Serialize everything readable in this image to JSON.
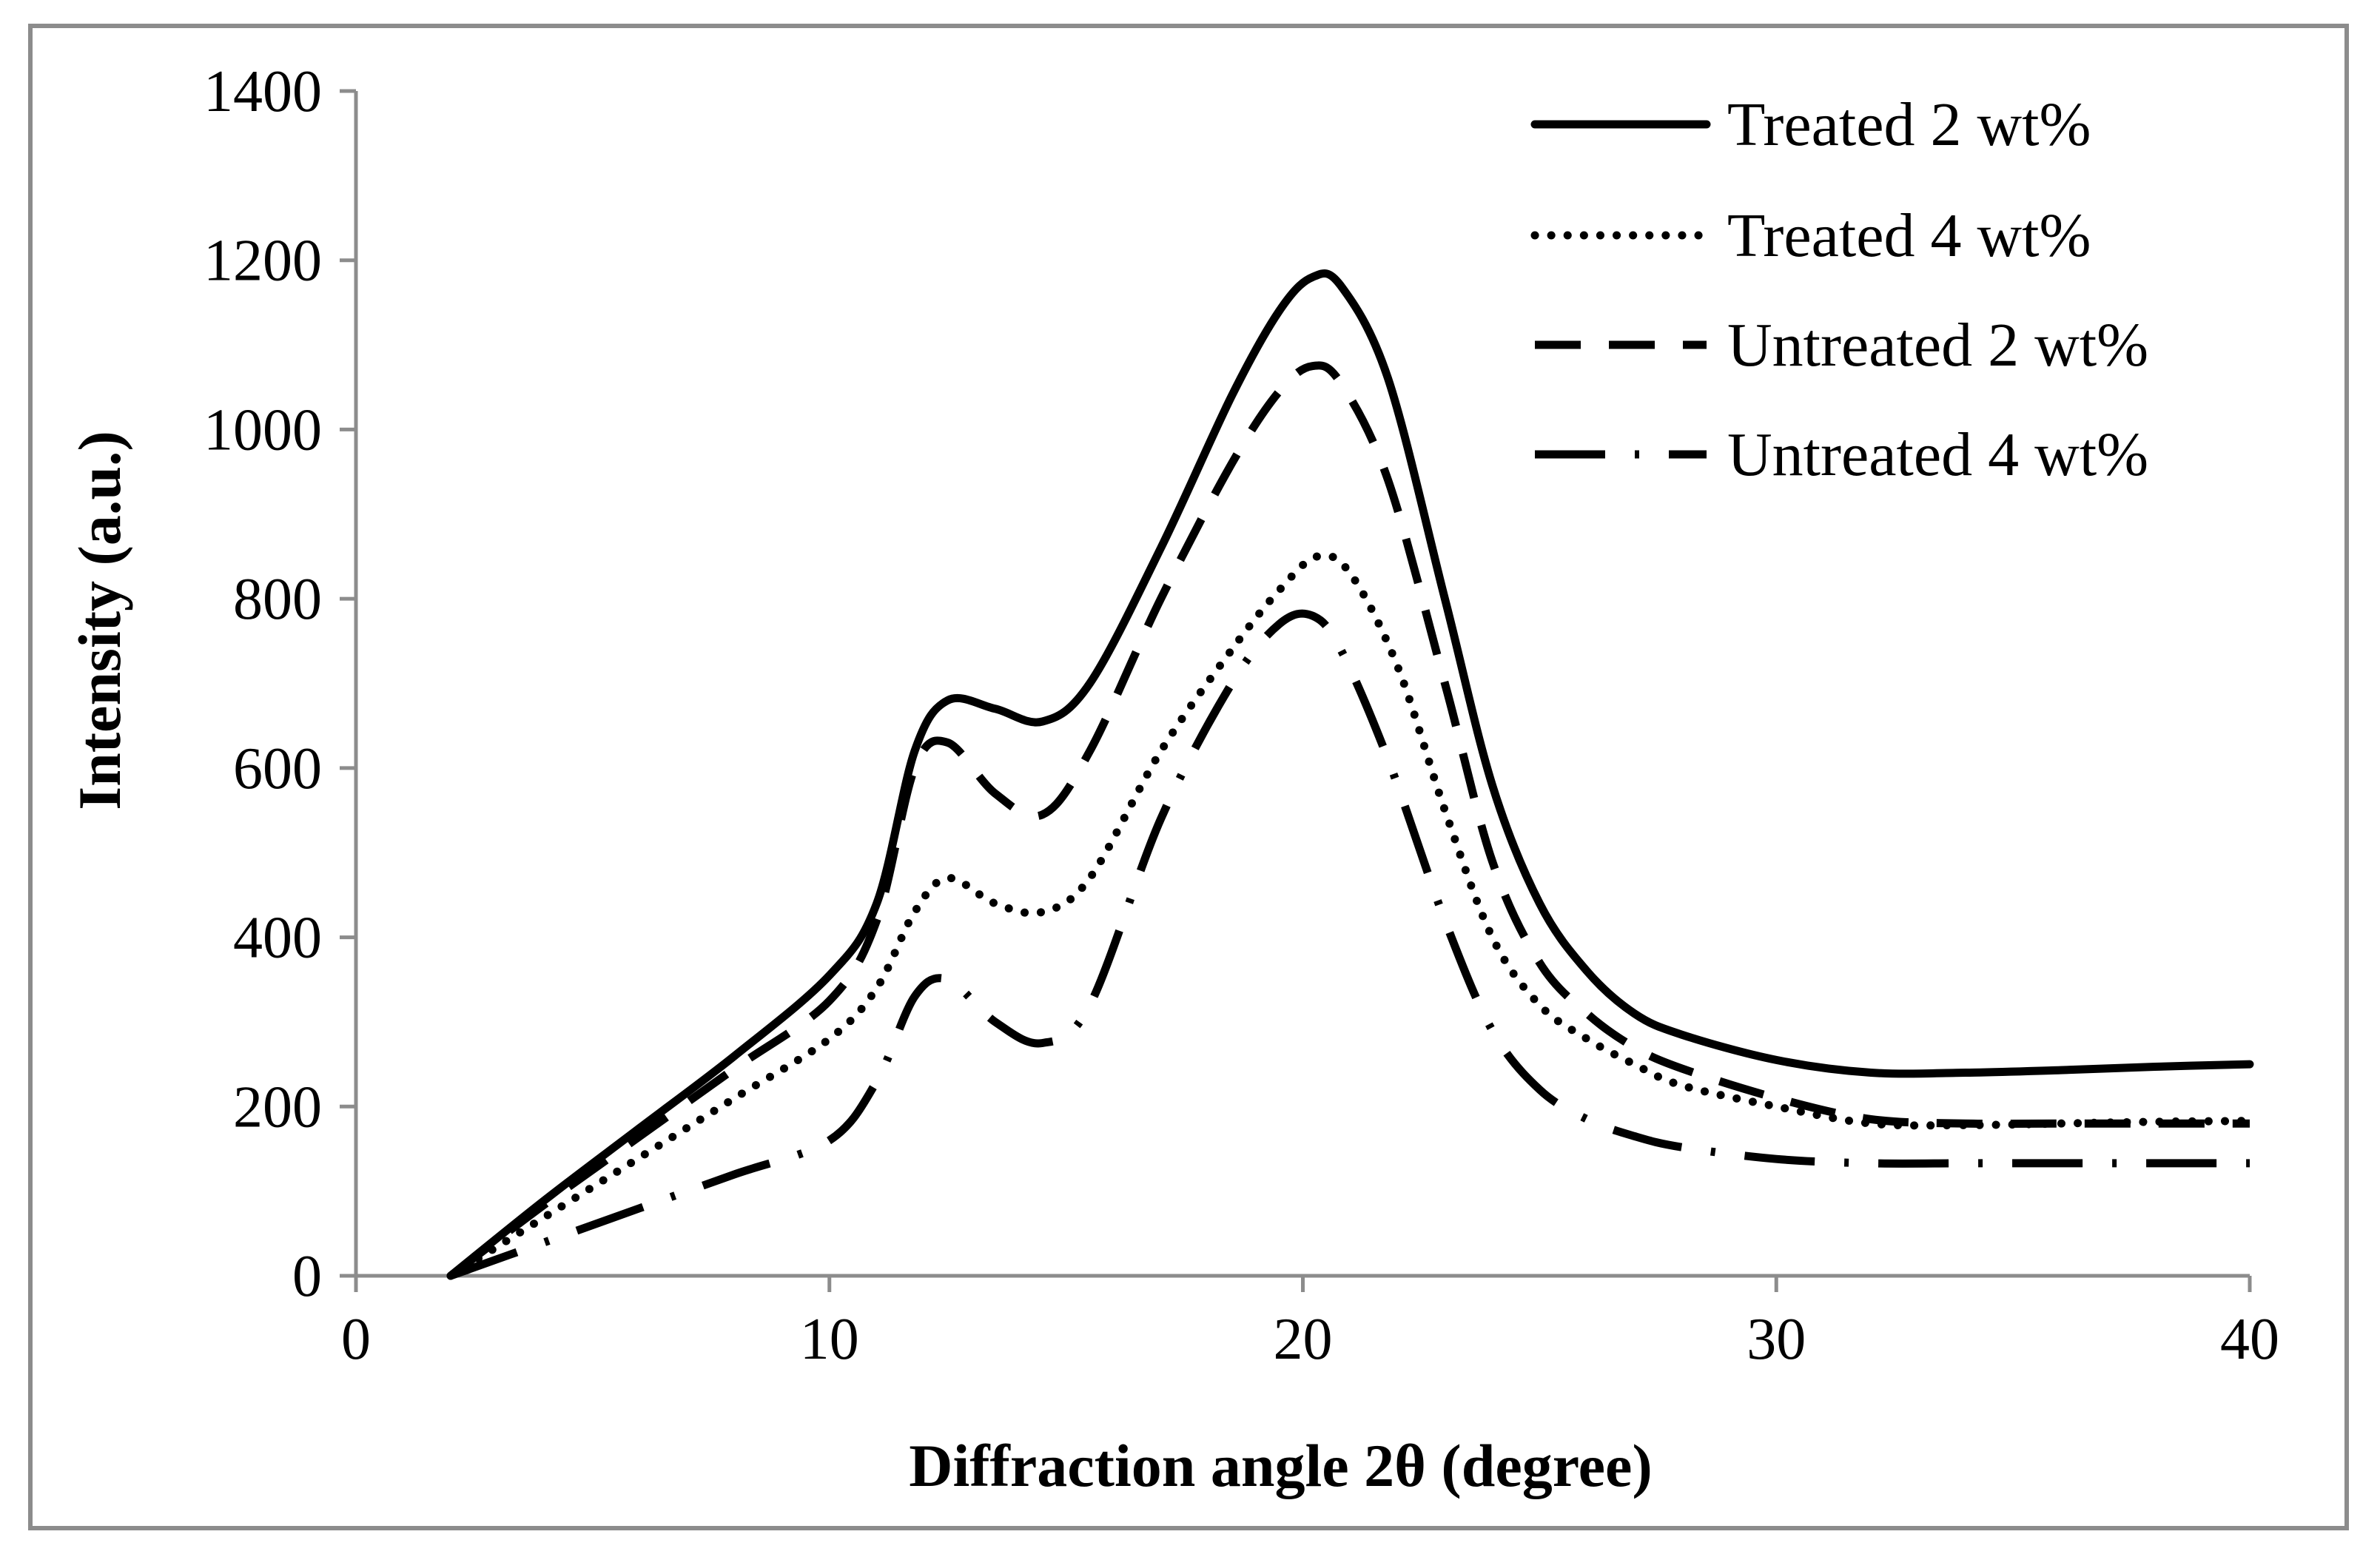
{
  "chart_data": {
    "type": "line",
    "title": "",
    "xlabel": "Diffraction angle 2θ (degree)",
    "ylabel": "Intensity (a.u.)",
    "xlim": [
      0,
      40
    ],
    "ylim": [
      0,
      1400
    ],
    "xticks": [
      0,
      10,
      20,
      30,
      40
    ],
    "yticks": [
      0,
      200,
      400,
      600,
      800,
      1000,
      1200,
      1400
    ],
    "x_tick_labels": [
      "0",
      "10",
      "20",
      "30",
      "40"
    ],
    "y_tick_labels": [
      "0",
      "200",
      "400",
      "600",
      "800",
      "1000",
      "1200",
      "1400"
    ],
    "grid": false,
    "legend_position": "top-right",
    "series": [
      {
        "name": "Treated 2 wt%",
        "style": "solid",
        "color": "#000000",
        "x": [
          2,
          4,
          6,
          8,
          10,
          11,
          11.8,
          12.5,
          13.5,
          14.5,
          15.5,
          17,
          18.5,
          19.5,
          20.2,
          20.8,
          21.8,
          23,
          24,
          25,
          26,
          27,
          28,
          30,
          32,
          34,
          36,
          38,
          40
        ],
        "y": [
          0,
          90,
          175,
          260,
          355,
          440,
          620,
          680,
          670,
          655,
          700,
          860,
          1040,
          1140,
          1180,
          1170,
          1060,
          800,
          580,
          440,
          360,
          310,
          285,
          255,
          240,
          240,
          243,
          247,
          250
        ]
      },
      {
        "name": "Treated 4 wt%",
        "style": "dotted",
        "color": "#000000",
        "x": [
          2,
          4,
          6,
          8,
          10,
          11,
          11.8,
          12.5,
          13.5,
          14.5,
          15.5,
          17,
          18.5,
          19.5,
          20.3,
          21,
          22,
          23,
          24,
          25,
          26,
          27,
          28,
          30,
          32,
          34,
          36,
          38,
          40
        ],
        "y": [
          0,
          70,
          140,
          210,
          280,
          340,
          430,
          470,
          440,
          430,
          470,
          620,
          740,
          810,
          850,
          830,
          720,
          550,
          400,
          320,
          280,
          250,
          225,
          200,
          180,
          178,
          180,
          182,
          183
        ]
      },
      {
        "name": "Untreated 2 wt%",
        "style": "dashed",
        "color": "#000000",
        "x": [
          2,
          4,
          6,
          8,
          10,
          11,
          11.8,
          12.5,
          13.5,
          14.5,
          15.5,
          17,
          18.5,
          19.5,
          20.2,
          20.8,
          21.8,
          23,
          24,
          25,
          26,
          27,
          28,
          30,
          32,
          34,
          36,
          38,
          40
        ],
        "y": [
          0,
          85,
          165,
          245,
          325,
          420,
          600,
          630,
          570,
          545,
          620,
          800,
          960,
          1045,
          1075,
          1055,
          940,
          700,
          490,
          370,
          310,
          270,
          245,
          210,
          185,
          180,
          180,
          180,
          180
        ]
      },
      {
        "name": "Untreated 4 wt%",
        "style": "dash-dot",
        "color": "#000000",
        "x": [
          2,
          4,
          6,
          8,
          10,
          11,
          11.8,
          12.5,
          13.5,
          14.5,
          15.5,
          17,
          18.5,
          19.5,
          20.2,
          20.8,
          21.8,
          23,
          24,
          25,
          26,
          27,
          28,
          30,
          32,
          34,
          36,
          38,
          40
        ],
        "y": [
          0,
          40,
          80,
          120,
          160,
          230,
          330,
          350,
          300,
          275,
          320,
          540,
          700,
          770,
          780,
          740,
          610,
          420,
          290,
          220,
          185,
          165,
          152,
          138,
          133,
          133,
          133,
          133,
          133
        ]
      }
    ]
  }
}
